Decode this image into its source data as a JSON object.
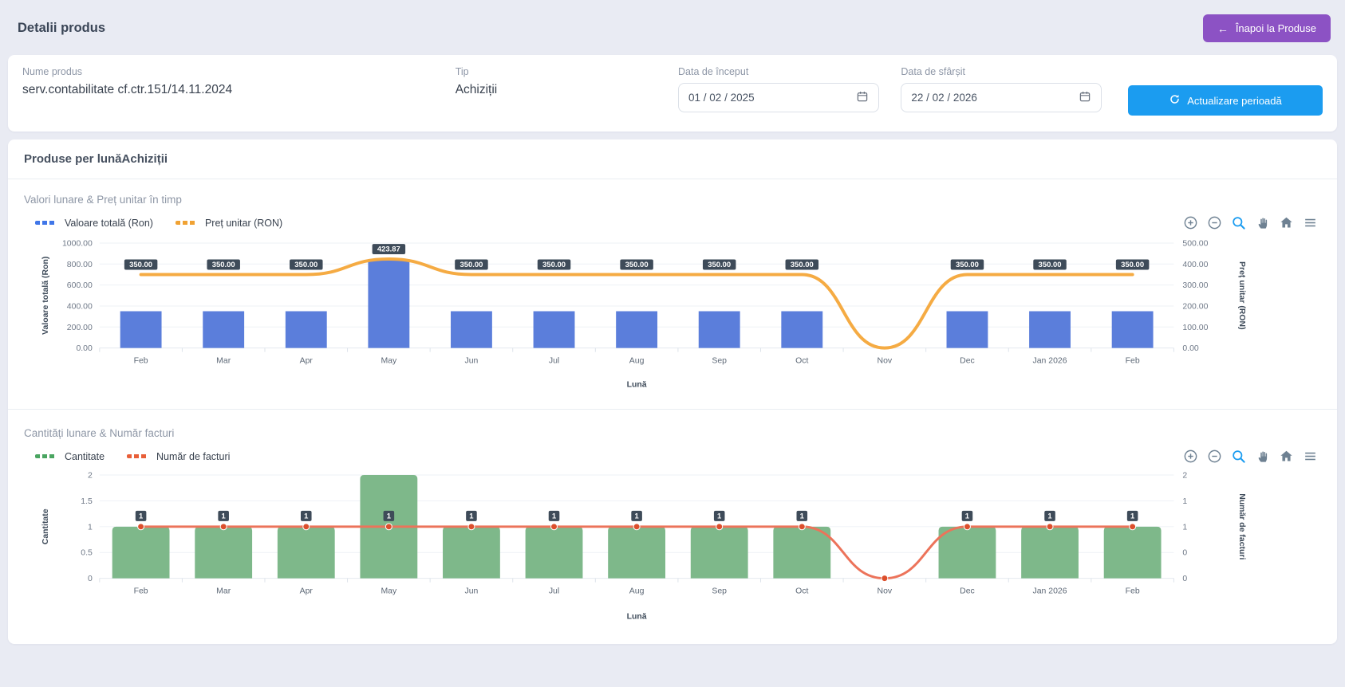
{
  "page": {
    "title": "Detalii produs",
    "back_button": "Înapoi la Produse"
  },
  "info": {
    "name_label": "Nume produs",
    "name_value": "serv.contabilitate cf.ctr.151/14.11.2024",
    "type_label": "Tip",
    "type_value": "Achiziții",
    "start_label": "Data de început",
    "start_value": "01 / 02 / 2025",
    "end_label": "Data de sfârșit",
    "end_value": "22 / 02 / 2026",
    "update_button": "Actualizare perioadă"
  },
  "panel": {
    "title": "Produse per lunăAchiziții"
  },
  "colors": {
    "accent_purple": "#8c52c4",
    "accent_blue": "#1b9cf0",
    "label_box": "#3e4b59",
    "grid": "#eef1f6",
    "grid_base": "#e4e9ef"
  },
  "chart_toolbar_icons": [
    "zoom-in",
    "zoom-out",
    "selection-zoom",
    "pan",
    "reset-home",
    "menu"
  ],
  "chart_data": [
    {
      "type": "bar+line",
      "title": "Valori lunare & Preț unitar în timp",
      "xlabel": "Lună",
      "ylabel_left": "Valoare totală (Ron)",
      "ylabel_right": "Preț unitar (RON)",
      "ylim_left": [
        0,
        1000
      ],
      "ylim_right": [
        0,
        500
      ],
      "left_ticks": [
        "0.00",
        "200.00",
        "400.00",
        "600.00",
        "800.00",
        "1000.00"
      ],
      "right_ticks": [
        "0.00",
        "100.00",
        "200.00",
        "300.00",
        "400.00",
        "500.00"
      ],
      "grid": true,
      "legend_position": "top-left",
      "categories": [
        "Feb",
        "Mar",
        "Apr",
        "May",
        "Jun",
        "Jul",
        "Aug",
        "Sep",
        "Oct",
        "Nov",
        "Dec",
        "Jan 2026",
        "Feb"
      ],
      "series": [
        {
          "name": "Valoare totală (Ron)",
          "kind": "bar",
          "axis": "left",
          "color": "#5b7edb",
          "swatch": "#4076e8",
          "values": [
            350,
            350,
            350,
            847.74,
            350,
            350,
            350,
            350,
            350,
            0,
            350,
            350,
            350
          ]
        },
        {
          "name": "Preț unitar (RON)",
          "kind": "line",
          "axis": "right",
          "color": "#f5ab43",
          "swatch": "#f0a233",
          "values": [
            350,
            350,
            350,
            423.87,
            350,
            350,
            350,
            350,
            350,
            0,
            350,
            350,
            350
          ],
          "labels": [
            "350.00",
            "350.00",
            "350.00",
            "423.87",
            "350.00",
            "350.00",
            "350.00",
            "350.00",
            "350.00",
            "",
            "350.00",
            "350.00",
            "350.00"
          ]
        }
      ]
    },
    {
      "type": "bar+line",
      "title": "Cantități lunare & Număr facturi",
      "xlabel": "Lună",
      "ylabel_left": "Cantitate",
      "ylabel_right": "Număr de facturi",
      "ylim_left": [
        0,
        2
      ],
      "ylim_right": [
        0,
        2
      ],
      "left_ticks": [
        "0",
        "0.5",
        "1",
        "1.5",
        "2"
      ],
      "right_ticks": [
        "0",
        "0",
        "1",
        "1",
        "2"
      ],
      "grid": true,
      "legend_position": "top-left",
      "categories": [
        "Feb",
        "Mar",
        "Apr",
        "May",
        "Jun",
        "Jul",
        "Aug",
        "Sep",
        "Oct",
        "Nov",
        "Dec",
        "Jan 2026",
        "Feb"
      ],
      "series": [
        {
          "name": "Cantitate",
          "kind": "bar",
          "axis": "left",
          "color": "#7eb88a",
          "swatch": "#4aa561",
          "values": [
            1,
            1,
            1,
            2,
            1,
            1,
            1,
            1,
            1,
            0,
            1,
            1,
            1
          ]
        },
        {
          "name": "Număr de facturi",
          "kind": "line",
          "axis": "right",
          "color": "#ec735a",
          "swatch": "#e85f39",
          "marker_color": "#dc4f2c",
          "values": [
            1,
            1,
            1,
            1,
            1,
            1,
            1,
            1,
            1,
            0,
            1,
            1,
            1
          ],
          "labels": [
            "1",
            "1",
            "1",
            "1",
            "1",
            "1",
            "1",
            "1",
            "1",
            "",
            "1",
            "1",
            "1"
          ]
        }
      ]
    }
  ]
}
